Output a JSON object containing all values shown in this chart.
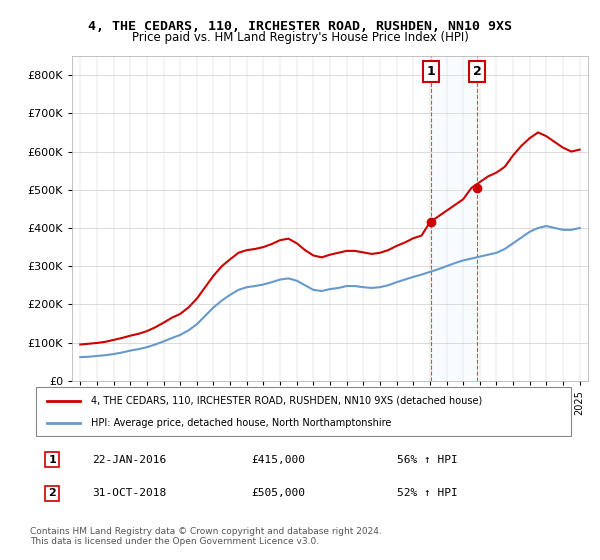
{
  "title": "4, THE CEDARS, 110, IRCHESTER ROAD, RUSHDEN, NN10 9XS",
  "subtitle": "Price paid vs. HM Land Registry's House Price Index (HPI)",
  "legend_line1": "4, THE CEDARS, 110, IRCHESTER ROAD, RUSHDEN, NN10 9XS (detached house)",
  "legend_line2": "HPI: Average price, detached house, North Northamptonshire",
  "annotation1_label": "1",
  "annotation1_date": "22-JAN-2016",
  "annotation1_price": "£415,000",
  "annotation1_pct": "56% ↑ HPI",
  "annotation2_label": "2",
  "annotation2_date": "31-OCT-2018",
  "annotation2_price": "£505,000",
  "annotation2_pct": "52% ↑ HPI",
  "footer": "Contains HM Land Registry data © Crown copyright and database right 2024.\nThis data is licensed under the Open Government Licence v3.0.",
  "red_color": "#cc0000",
  "blue_color": "#6699cc",
  "annotation_box_color": "#cc0000",
  "shaded_region_color": "#ddeeff",
  "ylim": [
    0,
    850000
  ],
  "yticks": [
    0,
    100000,
    200000,
    300000,
    400000,
    500000,
    600000,
    700000,
    800000
  ],
  "ytick_labels": [
    "£0",
    "£100K",
    "£200K",
    "£300K",
    "£400K",
    "£500K",
    "£600K",
    "£700K",
    "£800K"
  ]
}
